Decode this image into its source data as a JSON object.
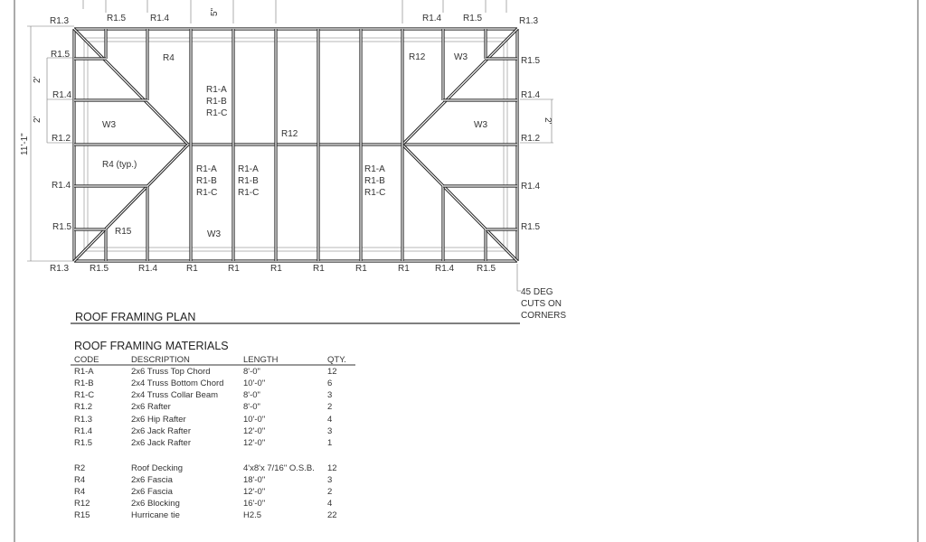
{
  "plan": {
    "title": "ROOF FRAMING PLAN",
    "note": [
      "45 DEG",
      "CUTS ON",
      "CORNERS"
    ],
    "dimensions": {
      "overall_depth": "11'-1\"",
      "spacing_left_1": "2'",
      "spacing_left_2": "2'",
      "spacing_right": "2'",
      "top_offset": "5\""
    },
    "labels": [
      "R1.3",
      "R1.5",
      "R1.4",
      "R1.4",
      "R1.5",
      "R1.3",
      "R1.5",
      "R1.4",
      "R1.2",
      "R1.4",
      "R1.5",
      "R1.3",
      "R1.5",
      "R1.4",
      "R1",
      "R1",
      "R1",
      "R1",
      "R1",
      "R1",
      "R1.4",
      "R1.5",
      "R1.5",
      "R1.4",
      "R1.2",
      "R1.4",
      "R1.5",
      "R4",
      "R1-A",
      "R1-B",
      "R1-C",
      "W3",
      "R4 (typ.)",
      "R12",
      "R15",
      "W3",
      "R12",
      "W3",
      "W3",
      "R1-A",
      "R1-B",
      "R1-C",
      "R1-A",
      "R1-B",
      "R1-C",
      "R1-A",
      "R1-B",
      "R1-C"
    ]
  },
  "materials": {
    "title": "ROOF FRAMING MATERIALS",
    "headers": [
      "CODE",
      "DESCRIPTION",
      "LENGTH",
      "QTY."
    ],
    "rows": [
      [
        "R1-A",
        "2x6 Truss Top Chord",
        "8'-0\"",
        "12"
      ],
      [
        "R1-B",
        "2x4 Truss Bottom Chord",
        "10'-0\"",
        "6"
      ],
      [
        "R1-C",
        "2x4 Truss Collar Beam",
        "8'-0\"",
        "3"
      ],
      [
        "R1.2",
        "2x6 Rafter",
        "8'-0\"",
        "2"
      ],
      [
        "R1.3",
        "2x6 Hip Rafter",
        "10'-0\"",
        "4"
      ],
      [
        "R1.4",
        "2x6 Jack Rafter",
        "12'-0\"",
        "3"
      ],
      [
        "R1.5",
        "2x6 Jack Rafter",
        "12'-0\"",
        "1"
      ],
      [
        "R2",
        "Roof Decking",
        "4'x8'x 7/16\" O.S.B.",
        "12"
      ],
      [
        "R4",
        "2x6 Fascia",
        "18'-0\"",
        "3"
      ],
      [
        "R4",
        "2x6 Fascia",
        "12'-0\"",
        "2"
      ],
      [
        "R12",
        "2x6 Blocking",
        "16'-0\"",
        "4"
      ],
      [
        "R15",
        "Hurricane tie",
        "H2.5",
        "22"
      ]
    ]
  }
}
